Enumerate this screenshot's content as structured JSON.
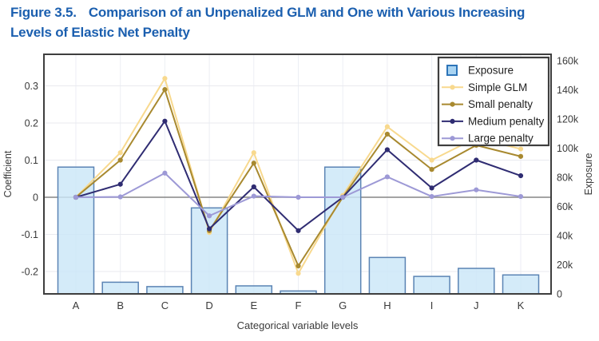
{
  "title": {
    "figure_label": "Figure 3.5.",
    "caption_line1": "Comparison of an Unpenalized GLM and One with Various Increasing",
    "caption_line2": "Levels of Elastic Net Penalty",
    "color": "#1b5faf"
  },
  "chart_data": {
    "type": "combo-bar-line",
    "categories": [
      "A",
      "B",
      "C",
      "D",
      "E",
      "F",
      "G",
      "H",
      "I",
      "J",
      "K"
    ],
    "bar_series": {
      "name": "Exposure",
      "axis": "right",
      "values": [
        87000,
        8000,
        5000,
        59000,
        5500,
        2000,
        87000,
        25000,
        12000,
        17500,
        13000
      ],
      "fill": "#cbe6f8",
      "stroke": "#5b84b4",
      "legend_fill": "#a9d4f2",
      "legend_stroke": "#2d74b8"
    },
    "series": [
      {
        "name": "Simple GLM",
        "color": "#f8d98e",
        "values": [
          0,
          0.12,
          0.32,
          -0.095,
          0.12,
          -0.205,
          0.005,
          0.19,
          0.1,
          0.16,
          0.13
        ]
      },
      {
        "name": "Small penalty",
        "color": "#a8892f",
        "values": [
          0,
          0.1,
          0.29,
          -0.09,
          0.092,
          -0.185,
          0.0,
          0.17,
          0.075,
          0.14,
          0.11
        ]
      },
      {
        "name": "Medium penalty",
        "color": "#2f2c72",
        "values": [
          0,
          0.035,
          0.205,
          -0.085,
          0.028,
          -0.09,
          0.0,
          0.128,
          0.025,
          0.1,
          0.058
        ]
      },
      {
        "name": "Large penalty",
        "color": "#9d99d6",
        "values": [
          0,
          0.001,
          0.065,
          -0.05,
          0.003,
          0.0,
          0.0,
          0.055,
          0.002,
          0.02,
          0.002
        ]
      }
    ],
    "left_axis": {
      "label": "Coefficient",
      "ticks": [
        {
          "value": 0.3,
          "label": "0.3"
        },
        {
          "value": 0.2,
          "label": "0.2"
        },
        {
          "value": 0.1,
          "label": "0.1"
        },
        {
          "value": 0,
          "label": "0"
        },
        {
          "value": -0.1,
          "label": "-0.1"
        },
        {
          "value": -0.2,
          "label": "-0.2"
        }
      ],
      "range": [
        -0.26,
        0.385
      ]
    },
    "right_axis": {
      "label": "Exposure",
      "ticks": [
        {
          "value": 160000,
          "label": "160k"
        },
        {
          "value": 140000,
          "label": "140k"
        },
        {
          "value": 120000,
          "label": "120k"
        },
        {
          "value": 100000,
          "label": "100k"
        },
        {
          "value": 80000,
          "label": "80k"
        },
        {
          "value": 60000,
          "label": "60k"
        },
        {
          "value": 40000,
          "label": "40k"
        },
        {
          "value": 20000,
          "label": "20k"
        },
        {
          "value": 0,
          "label": "0"
        }
      ],
      "range": [
        0,
        163000
      ]
    },
    "x_axis": {
      "label": "Categorical variable levels"
    },
    "legend": {
      "position": "top-right",
      "entries": [
        "Exposure",
        "Simple GLM",
        "Small penalty",
        "Medium penalty",
        "Large penalty"
      ]
    },
    "style": {
      "grid_v_color": "#eceef4",
      "grid_h_color": "#e9eaef",
      "zero_line_color": "#858585",
      "frame_color": "#3e3e3e",
      "tick_text_color": "#3a3a3a",
      "legend_text_color": "#1f1f1f"
    }
  }
}
